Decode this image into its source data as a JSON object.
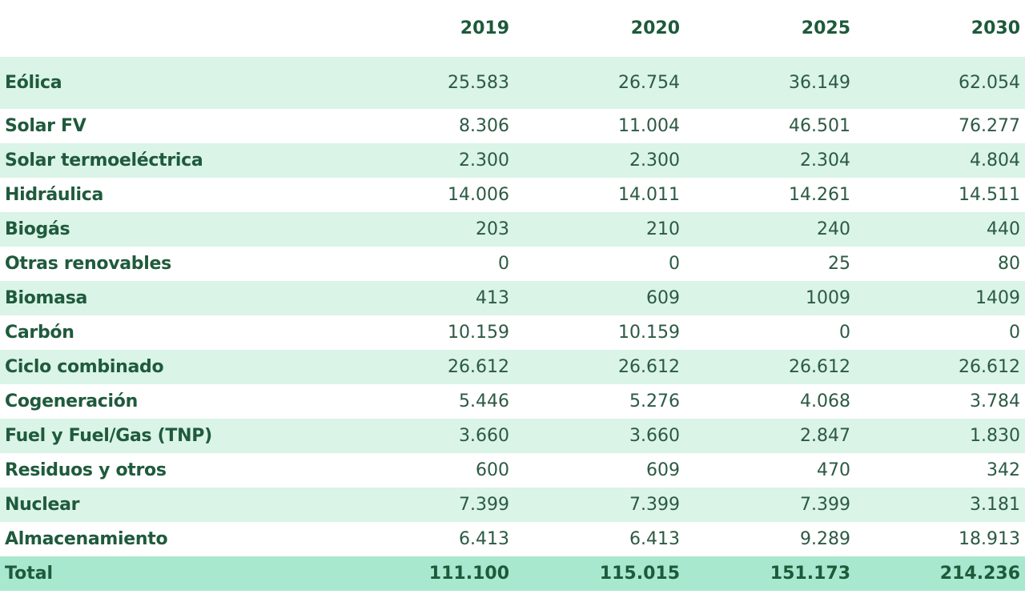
{
  "chart_data": {
    "type": "table",
    "columns": [
      "",
      "2019",
      "2020",
      "2025",
      "2030"
    ],
    "rows": [
      {
        "label": "Eólica",
        "values": [
          "25.583",
          "26.754",
          "36.149",
          "62.054"
        ]
      },
      {
        "label": "Solar FV",
        "values": [
          "8.306",
          "11.004",
          "46.501",
          "76.277"
        ]
      },
      {
        "label": "Solar termoeléctrica",
        "values": [
          "2.300",
          "2.300",
          "2.304",
          "4.804"
        ]
      },
      {
        "label": "Hidráulica",
        "values": [
          "14.006",
          "14.011",
          "14.261",
          "14.511"
        ]
      },
      {
        "label": "Biogás",
        "values": [
          "203",
          "210",
          "240",
          "440"
        ]
      },
      {
        "label": "Otras renovables",
        "values": [
          "0",
          "0",
          "25",
          "80"
        ]
      },
      {
        "label": "Biomasa",
        "values": [
          "413",
          "609",
          "1009",
          "1409"
        ]
      },
      {
        "label": "Carbón",
        "values": [
          "10.159",
          "10.159",
          "0",
          "0"
        ]
      },
      {
        "label": "Ciclo combinado",
        "values": [
          "26.612",
          "26.612",
          "26.612",
          "26.612"
        ]
      },
      {
        "label": "Cogeneración",
        "values": [
          "5.446",
          "5.276",
          "4.068",
          "3.784"
        ]
      },
      {
        "label": "Fuel y Fuel/Gas (TNP)",
        "values": [
          "3.660",
          "3.660",
          "2.847",
          "1.830"
        ]
      },
      {
        "label": "Residuos y otros",
        "values": [
          "600",
          "609",
          "470",
          "342"
        ]
      },
      {
        "label": "Nuclear",
        "values": [
          "7.399",
          "7.399",
          "7.399",
          "3.181"
        ]
      },
      {
        "label": "Almacenamiento",
        "values": [
          "6.413",
          "6.413",
          "9.289",
          "18.913"
        ]
      }
    ],
    "total": {
      "label": "Total",
      "values": [
        "111.100",
        "115.015",
        "151.173",
        "214.236"
      ]
    }
  },
  "colors": {
    "text": "#1f5a3c",
    "row_shade": "#daf4e7",
    "total_row": "#a8e8cf",
    "background": "#ffffff"
  }
}
